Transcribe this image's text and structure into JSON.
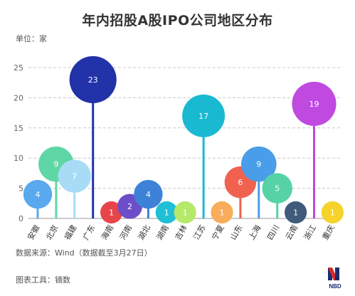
{
  "title": "年内招股A股IPO公司地区分布",
  "unit_label": "单位：家",
  "source": "数据来源：Wind（数据截至3月27日）",
  "tool": "图表工具：镝数",
  "logo_text": "NBD",
  "chart_data": {
    "type": "bar",
    "title": "年内招股A股IPO公司地区分布",
    "ylabel": "单位：家",
    "ylim": [
      0,
      25
    ],
    "yticks": [
      0,
      5,
      10,
      15,
      20,
      25
    ],
    "grid": true,
    "categories": [
      "安徽",
      "北京",
      "福建",
      "广东",
      "海南",
      "河南",
      "湖北",
      "湖南",
      "吉林",
      "江苏",
      "宁夏",
      "山东",
      "上海",
      "四川",
      "云南",
      "浙江",
      "重庆"
    ],
    "values": [
      4,
      9,
      7,
      23,
      1,
      2,
      4,
      1,
      1,
      17,
      1,
      6,
      9,
      5,
      1,
      19,
      1
    ],
    "colors": [
      "#5aa8ee",
      "#5fd6a6",
      "#a8dcf6",
      "#2232a8",
      "#e8454b",
      "#6c4ec9",
      "#3d82d8",
      "#1fbfd6",
      "#b6e86a",
      "#1ab9d2",
      "#f7ad5a",
      "#f0614f",
      "#4a9de8",
      "#55d3a6",
      "#3f5a7a",
      "#c049e0",
      "#f5d32a"
    ]
  }
}
